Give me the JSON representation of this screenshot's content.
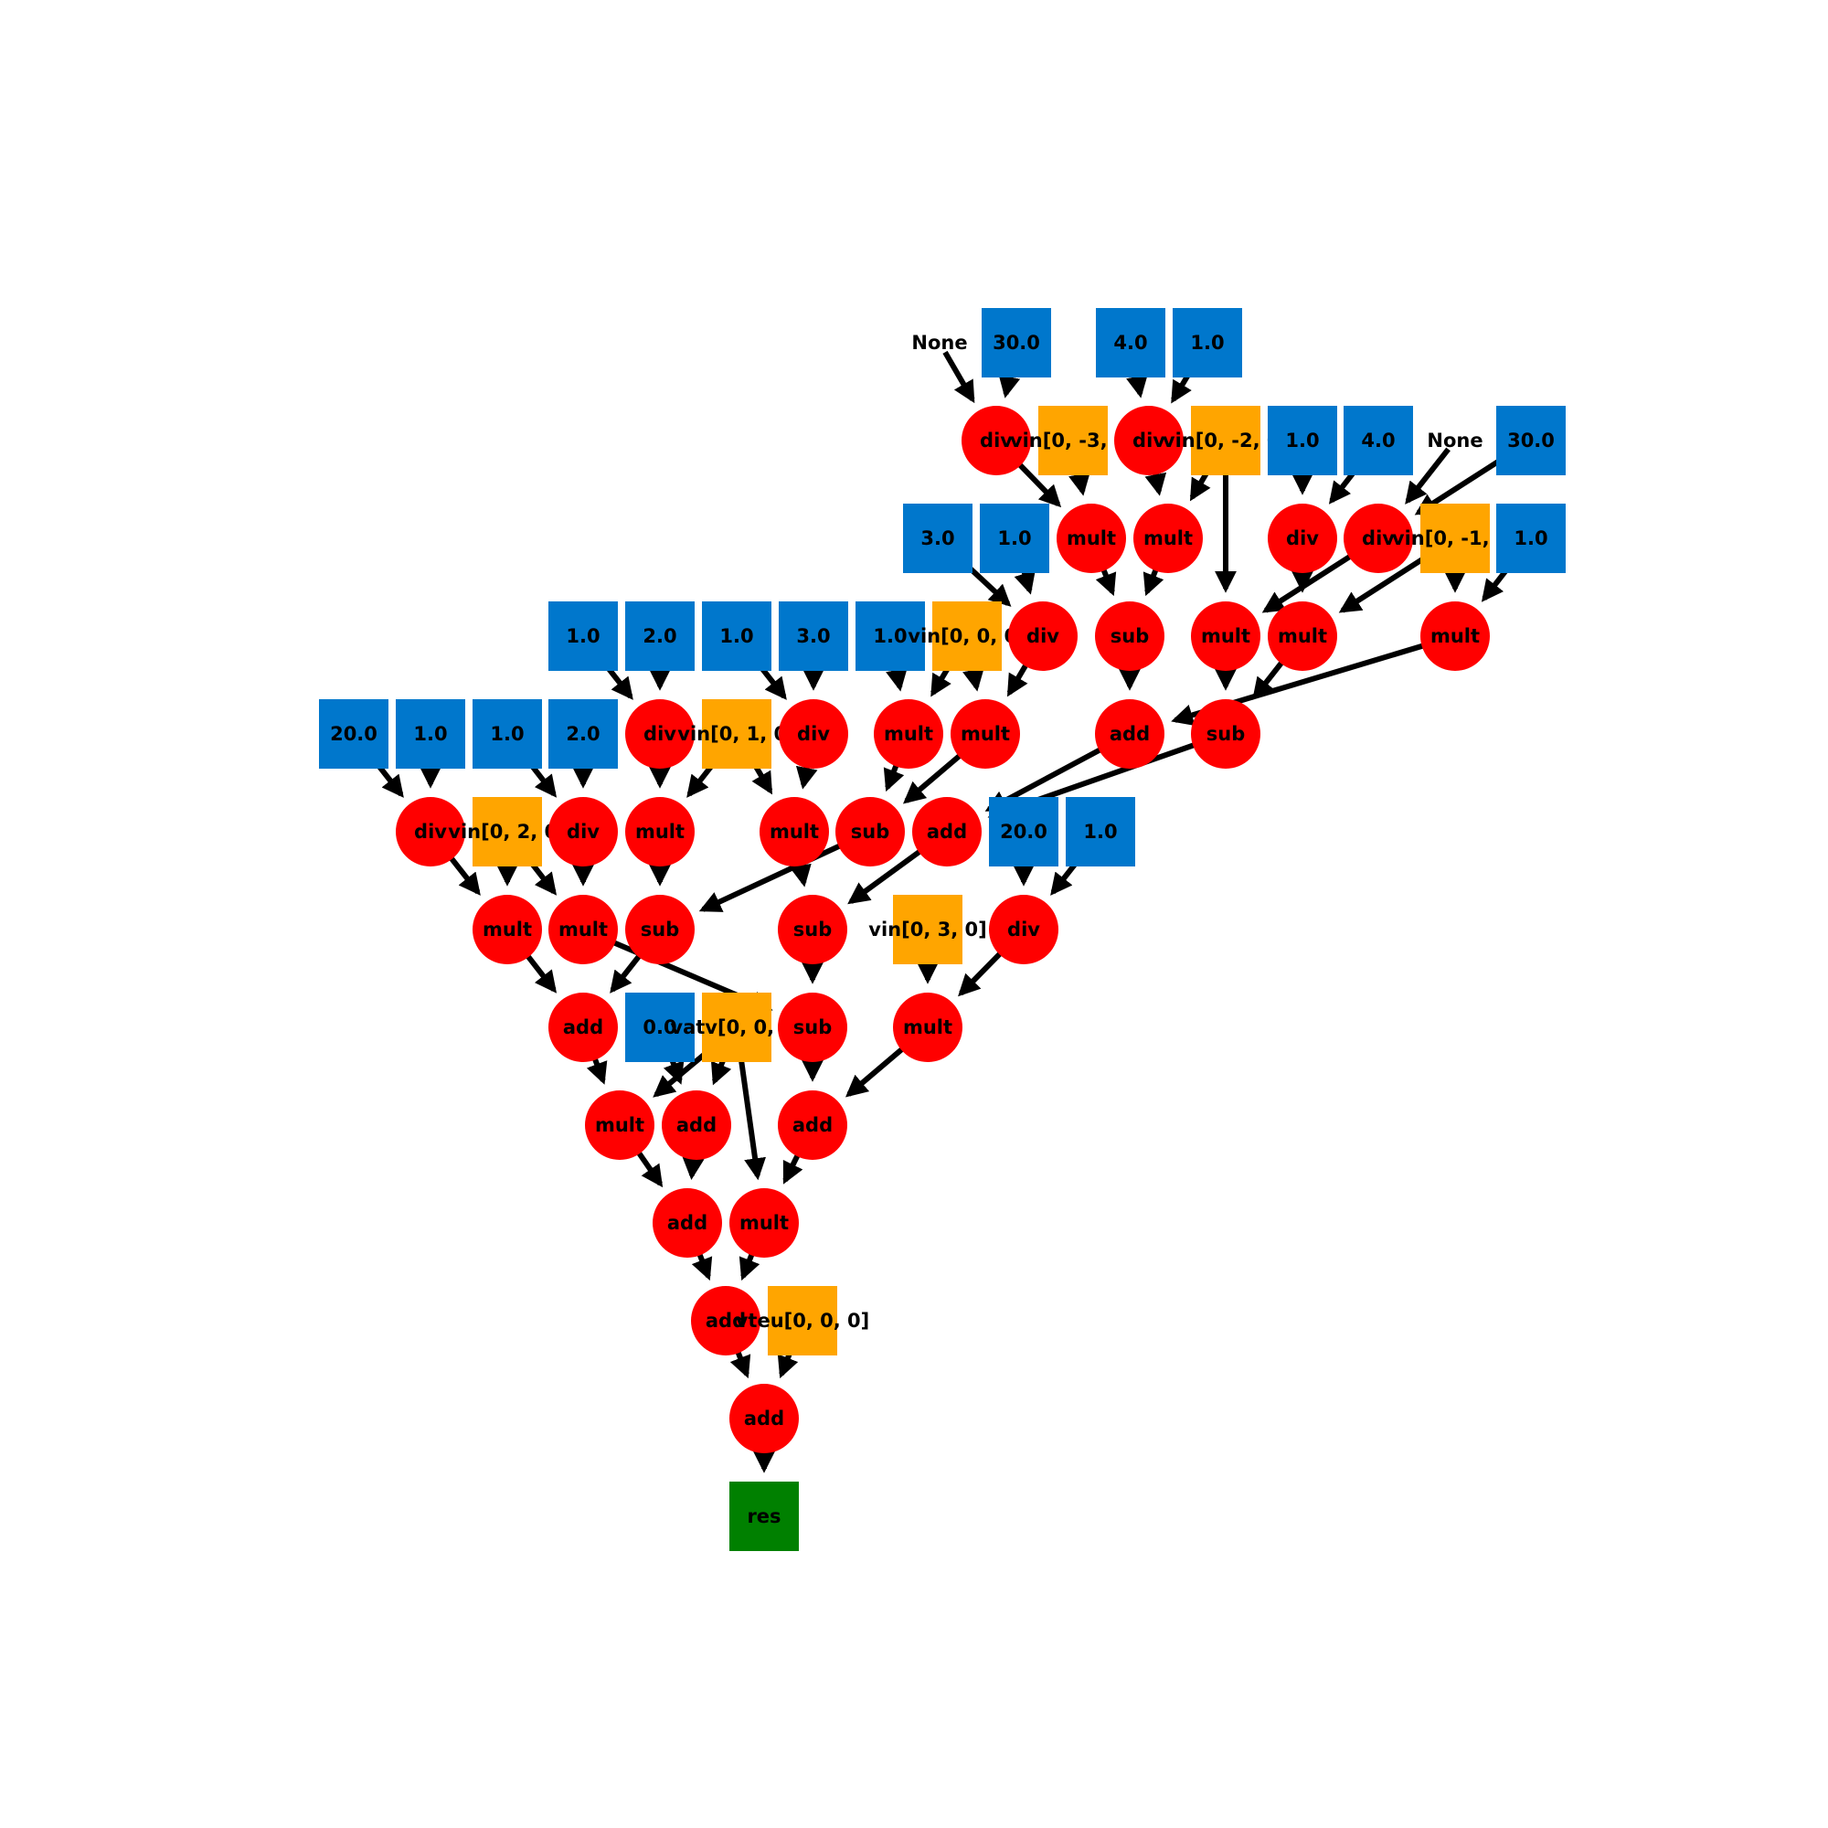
{
  "colors": {
    "operator": "#ff0000",
    "constant": "#0077cc",
    "variable": "#ffa500",
    "result": "#008000",
    "edge": "#000000"
  },
  "nodes": [
    {
      "id": "none1",
      "kind": "none",
      "label": "None"
    },
    {
      "id": "c30a",
      "kind": "constant",
      "label": "30.0"
    },
    {
      "id": "c4a",
      "kind": "constant",
      "label": "4.0"
    },
    {
      "id": "c1a",
      "kind": "constant",
      "label": "1.0"
    },
    {
      "id": "div1",
      "kind": "operator",
      "label": "div"
    },
    {
      "id": "vin_m3",
      "kind": "variable",
      "label": "vin[0, -3, 0]"
    },
    {
      "id": "div2",
      "kind": "operator",
      "label": "div"
    },
    {
      "id": "vin_m2",
      "kind": "variable",
      "label": "vin[0, -2, 0]"
    },
    {
      "id": "c1b",
      "kind": "constant",
      "label": "1.0"
    },
    {
      "id": "c4b",
      "kind": "constant",
      "label": "4.0"
    },
    {
      "id": "none2",
      "kind": "none",
      "label": "None"
    },
    {
      "id": "c30b",
      "kind": "constant",
      "label": "30.0"
    },
    {
      "id": "c3a",
      "kind": "constant",
      "label": "3.0"
    },
    {
      "id": "c1c",
      "kind": "constant",
      "label": "1.0"
    },
    {
      "id": "mult1",
      "kind": "operator",
      "label": "mult"
    },
    {
      "id": "mult2",
      "kind": "operator",
      "label": "mult"
    },
    {
      "id": "div3",
      "kind": "operator",
      "label": "div"
    },
    {
      "id": "div4",
      "kind": "operator",
      "label": "div"
    },
    {
      "id": "vin_m1",
      "kind": "variable",
      "label": "vin[0, -1, 0]"
    },
    {
      "id": "c1d",
      "kind": "constant",
      "label": "1.0"
    },
    {
      "id": "c1e",
      "kind": "constant",
      "label": "1.0"
    },
    {
      "id": "c2a",
      "kind": "constant",
      "label": "2.0"
    },
    {
      "id": "c1f",
      "kind": "constant",
      "label": "1.0"
    },
    {
      "id": "c3b",
      "kind": "constant",
      "label": "3.0"
    },
    {
      "id": "c1g",
      "kind": "constant",
      "label": "1.0"
    },
    {
      "id": "vin_0",
      "kind": "variable",
      "label": "vin[0, 0, 0]"
    },
    {
      "id": "div5",
      "kind": "operator",
      "label": "div"
    },
    {
      "id": "sub1",
      "kind": "operator",
      "label": "sub"
    },
    {
      "id": "mult3",
      "kind": "operator",
      "label": "mult"
    },
    {
      "id": "mult4",
      "kind": "operator",
      "label": "mult"
    },
    {
      "id": "mult5",
      "kind": "operator",
      "label": "mult"
    },
    {
      "id": "c20a",
      "kind": "constant",
      "label": "20.0"
    },
    {
      "id": "c1h",
      "kind": "constant",
      "label": "1.0"
    },
    {
      "id": "c1i",
      "kind": "constant",
      "label": "1.0"
    },
    {
      "id": "c2b",
      "kind": "constant",
      "label": "2.0"
    },
    {
      "id": "div6",
      "kind": "operator",
      "label": "div"
    },
    {
      "id": "vin_1",
      "kind": "variable",
      "label": "vin[0, 1, 0]"
    },
    {
      "id": "div7",
      "kind": "operator",
      "label": "div"
    },
    {
      "id": "mult6",
      "kind": "operator",
      "label": "mult"
    },
    {
      "id": "mult7",
      "kind": "operator",
      "label": "mult"
    },
    {
      "id": "add1",
      "kind": "operator",
      "label": "add"
    },
    {
      "id": "sub2",
      "kind": "operator",
      "label": "sub"
    },
    {
      "id": "div8",
      "kind": "operator",
      "label": "div"
    },
    {
      "id": "vin_2",
      "kind": "variable",
      "label": "vin[0, 2, 0]"
    },
    {
      "id": "div9",
      "kind": "operator",
      "label": "div"
    },
    {
      "id": "mult8",
      "kind": "operator",
      "label": "mult"
    },
    {
      "id": "mult9",
      "kind": "operator",
      "label": "mult"
    },
    {
      "id": "sub3",
      "kind": "operator",
      "label": "sub"
    },
    {
      "id": "add2",
      "kind": "operator",
      "label": "add"
    },
    {
      "id": "c20b",
      "kind": "constant",
      "label": "20.0"
    },
    {
      "id": "c1j",
      "kind": "constant",
      "label": "1.0"
    },
    {
      "id": "mult10",
      "kind": "operator",
      "label": "mult"
    },
    {
      "id": "mult11",
      "kind": "operator",
      "label": "mult"
    },
    {
      "id": "sub4",
      "kind": "operator",
      "label": "sub"
    },
    {
      "id": "sub5",
      "kind": "operator",
      "label": "sub"
    },
    {
      "id": "vin_3",
      "kind": "variable",
      "label": "vin[0, 3, 0]"
    },
    {
      "id": "div10",
      "kind": "operator",
      "label": "div"
    },
    {
      "id": "add3",
      "kind": "operator",
      "label": "add"
    },
    {
      "id": "c0",
      "kind": "constant",
      "label": "0.0"
    },
    {
      "id": "vatv",
      "kind": "variable",
      "label": "vatv[0, 0, 0]"
    },
    {
      "id": "sub6",
      "kind": "operator",
      "label": "sub"
    },
    {
      "id": "mult12",
      "kind": "operator",
      "label": "mult"
    },
    {
      "id": "mult13",
      "kind": "operator",
      "label": "mult"
    },
    {
      "id": "add4",
      "kind": "operator",
      "label": "add"
    },
    {
      "id": "add5",
      "kind": "operator",
      "label": "add"
    },
    {
      "id": "add6",
      "kind": "operator",
      "label": "add"
    },
    {
      "id": "mult14",
      "kind": "operator",
      "label": "mult"
    },
    {
      "id": "add7",
      "kind": "operator",
      "label": "add"
    },
    {
      "id": "vteu",
      "kind": "variable",
      "label": "vteu[0, 0, 0]"
    },
    {
      "id": "add8",
      "kind": "operator",
      "label": "add"
    },
    {
      "id": "res",
      "kind": "result",
      "label": "res"
    }
  ],
  "edges": [
    [
      "none1",
      "div1"
    ],
    [
      "c30a",
      "div1"
    ],
    [
      "c4a",
      "div2"
    ],
    [
      "c1a",
      "div2"
    ],
    [
      "div1",
      "mult1"
    ],
    [
      "vin_m3",
      "mult1"
    ],
    [
      "div2",
      "mult2"
    ],
    [
      "vin_m2",
      "mult2"
    ],
    [
      "c1b",
      "div3"
    ],
    [
      "c4b",
      "div3"
    ],
    [
      "none2",
      "div4"
    ],
    [
      "c30b",
      "div4"
    ],
    [
      "c3a",
      "div5"
    ],
    [
      "c1c",
      "div5"
    ],
    [
      "mult1",
      "sub1"
    ],
    [
      "mult2",
      "sub1"
    ],
    [
      "vin_m2",
      "mult3"
    ],
    [
      "div4",
      "mult3"
    ],
    [
      "div3",
      "mult4"
    ],
    [
      "vin_m1",
      "mult4"
    ],
    [
      "vin_m1",
      "mult5"
    ],
    [
      "c1d",
      "mult5"
    ],
    [
      "c1e",
      "div6"
    ],
    [
      "c2a",
      "div6"
    ],
    [
      "c1f",
      "div7"
    ],
    [
      "c3b",
      "div7"
    ],
    [
      "c1g",
      "mult6"
    ],
    [
      "vin_0",
      "mult6"
    ],
    [
      "vin_0",
      "mult7"
    ],
    [
      "div5",
      "mult7"
    ],
    [
      "sub1",
      "add1"
    ],
    [
      "mult5",
      "add1"
    ],
    [
      "mult3",
      "sub2"
    ],
    [
      "mult4",
      "sub2"
    ],
    [
      "c20a",
      "div8"
    ],
    [
      "c1h",
      "div8"
    ],
    [
      "c1i",
      "div9"
    ],
    [
      "c2b",
      "div9"
    ],
    [
      "div6",
      "mult8"
    ],
    [
      "vin_1",
      "mult8"
    ],
    [
      "vin_1",
      "mult9"
    ],
    [
      "div7",
      "mult9"
    ],
    [
      "mult6",
      "sub3"
    ],
    [
      "mult7",
      "sub3"
    ],
    [
      "add1",
      "add2"
    ],
    [
      "sub2",
      "add2"
    ],
    [
      "div8",
      "mult10"
    ],
    [
      "vin_2",
      "mult10"
    ],
    [
      "vin_2",
      "mult11"
    ],
    [
      "div9",
      "mult11"
    ],
    [
      "c20b",
      "div10"
    ],
    [
      "c1j",
      "div10"
    ],
    [
      "mult8",
      "sub4"
    ],
    [
      "sub3",
      "sub4"
    ],
    [
      "mult9",
      "sub5"
    ],
    [
      "add2",
      "sub5"
    ],
    [
      "mult10",
      "add3"
    ],
    [
      "sub4",
      "add3"
    ],
    [
      "mult11",
      "sub6"
    ],
    [
      "sub5",
      "sub6"
    ],
    [
      "vin_3",
      "mult12"
    ],
    [
      "div10",
      "mult12"
    ],
    [
      "add3",
      "mult13"
    ],
    [
      "vatv",
      "mult13"
    ],
    [
      "c0",
      "add4"
    ],
    [
      "vatv",
      "add4"
    ],
    [
      "sub6",
      "add5"
    ],
    [
      "mult12",
      "add5"
    ],
    [
      "mult13",
      "add6"
    ],
    [
      "add4",
      "add6"
    ],
    [
      "vatv",
      "mult14"
    ],
    [
      "add5",
      "mult14"
    ],
    [
      "add6",
      "add7"
    ],
    [
      "mult14",
      "add7"
    ],
    [
      "add7",
      "add8"
    ],
    [
      "vteu",
      "add8"
    ],
    [
      "add8",
      "res"
    ]
  ]
}
